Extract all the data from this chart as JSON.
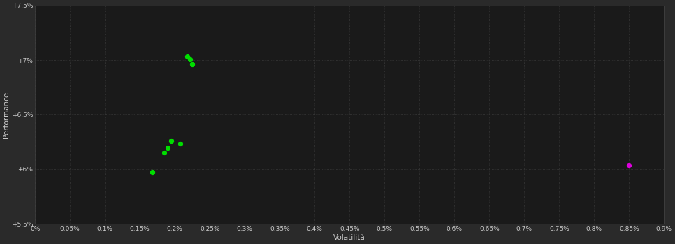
{
  "background_color": "#2a2a2a",
  "plot_bg_color": "#1a1a1a",
  "grid_color": "#3a3a3a",
  "grid_linestyle": ":",
  "xlabel": "Volatilità",
  "ylabel": "Performance",
  "xlabel_color": "#cccccc",
  "ylabel_color": "#cccccc",
  "tick_color": "#cccccc",
  "xlim": [
    0.0,
    0.009
  ],
  "ylim": [
    0.055,
    0.075
  ],
  "xticks": [
    0.0,
    0.0005,
    0.001,
    0.0015,
    0.002,
    0.0025,
    0.003,
    0.0035,
    0.004,
    0.0045,
    0.005,
    0.0055,
    0.006,
    0.0065,
    0.007,
    0.0075,
    0.008,
    0.0085,
    0.009
  ],
  "xtick_labels": [
    "0%",
    "0.05%",
    "0.1%",
    "0.15%",
    "0.2%",
    "0.25%",
    "0.3%",
    "0.35%",
    "0.4%",
    "0.45%",
    "0.5%",
    "0.55%",
    "0.6%",
    "0.65%",
    "0.7%",
    "0.75%",
    "0.8%",
    "0.85%",
    "0.9%"
  ],
  "yticks": [
    0.055,
    0.06,
    0.065,
    0.07,
    0.075
  ],
  "ytick_labels": [
    "+5.5%",
    "+6%",
    "+6.5%",
    "+7%",
    "+7.5%"
  ],
  "green_points": [
    [
      0.00218,
      0.0703
    ],
    [
      0.00222,
      0.07008
    ],
    [
      0.00225,
      0.0696
    ],
    [
      0.00195,
      0.0626
    ],
    [
      0.00208,
      0.06235
    ],
    [
      0.0019,
      0.06195
    ],
    [
      0.00185,
      0.06155
    ],
    [
      0.00168,
      0.05975
    ]
  ],
  "magenta_points": [
    [
      0.0085,
      0.0604
    ]
  ],
  "point_size": 18,
  "green_color": "#00dd00",
  "magenta_color": "#dd00dd"
}
